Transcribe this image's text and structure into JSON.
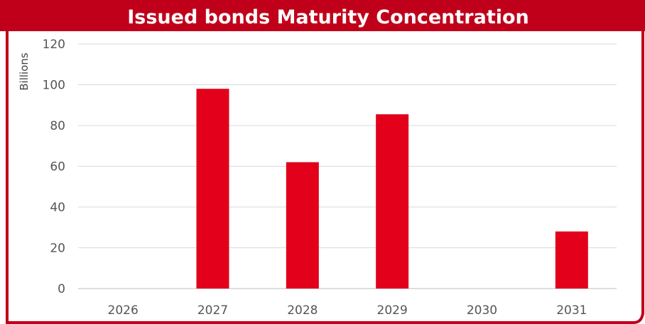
{
  "chart_data": {
    "type": "bar",
    "title": "Issued bonds Maturity Concentration",
    "xlabel": "",
    "ylabel": "Billions",
    "categories": [
      "2026",
      "2027",
      "2028",
      "2029",
      "2030",
      "2031"
    ],
    "values": [
      0,
      98,
      62,
      85.5,
      0,
      28
    ],
    "ylim": [
      0,
      120
    ],
    "yticks": [
      0,
      20,
      40,
      60,
      80,
      100,
      120
    ],
    "grid": true,
    "legend": "none",
    "bar_color": "#E2001A",
    "accent_color": "#C0001A"
  }
}
